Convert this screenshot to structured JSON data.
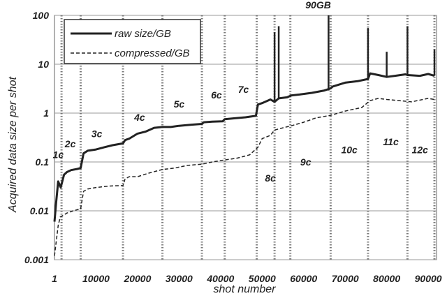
{
  "chart_data": {
    "type": "line",
    "xlabel": "shot  number",
    "ylabel": "Acquired data size per shot",
    "yscale": "log",
    "ylim": [
      0.001,
      100
    ],
    "xlim": [
      1,
      92000
    ],
    "x_tick_labels": [
      "1",
      "10000",
      "20000",
      "30000",
      "40000",
      "50000",
      "60000",
      "70000",
      "80000",
      "90000"
    ],
    "x_tick_values": [
      1,
      10000,
      20000,
      30000,
      40000,
      50000,
      60000,
      70000,
      80000,
      90000
    ],
    "y_tick_labels": [
      "0.001",
      "0.01",
      "0.1",
      "1",
      "10",
      "100"
    ],
    "y_tick_values": [
      0.001,
      0.01,
      0.1,
      1,
      10,
      100
    ],
    "grid": "horizontal",
    "legend_position": "top-left",
    "series": [
      {
        "name": "raw size/GB",
        "style": "solid",
        "color": "#222222",
        "x": [
          1,
          400,
          900,
          1500,
          2300,
          3000,
          4000,
          5500,
          6300,
          7000,
          8000,
          10000,
          12000,
          14000,
          16500,
          17000,
          18000,
          20000,
          22000,
          24000,
          26000,
          28000,
          30000,
          33000,
          35500,
          36000,
          38000,
          40500,
          41000,
          43000,
          46000,
          48500,
          49000,
          50000,
          52000,
          53000,
          54000,
          56000,
          57000,
          59000,
          62000,
          65000,
          66500,
          67000,
          70000,
          73000,
          75500,
          76000,
          78000,
          80000,
          82000,
          84500,
          85000,
          88000,
          90000,
          91500
        ],
        "values": [
          0.006,
          0.015,
          0.04,
          0.03,
          0.055,
          0.062,
          0.068,
          0.072,
          0.075,
          0.15,
          0.17,
          0.18,
          0.2,
          0.22,
          0.24,
          0.28,
          0.3,
          0.38,
          0.42,
          0.5,
          0.52,
          0.52,
          0.55,
          0.58,
          0.6,
          0.65,
          0.67,
          0.68,
          0.75,
          0.78,
          0.82,
          0.88,
          1.5,
          1.6,
          1.9,
          1.7,
          2.0,
          2.1,
          2.3,
          2.4,
          2.6,
          2.9,
          3.2,
          3.5,
          4.2,
          4.5,
          5.0,
          6.5,
          6.0,
          5.5,
          5.8,
          6.2,
          6.0,
          5.8,
          6.3,
          5.8
        ],
        "spikes": [
          {
            "x": 53000,
            "value": 45
          },
          {
            "x": 54000,
            "value": 60
          },
          {
            "x": 66000,
            "value": 100
          },
          {
            "x": 75500,
            "value": 55
          },
          {
            "x": 80000,
            "value": 18
          },
          {
            "x": 85000,
            "value": 60
          },
          {
            "x": 91500,
            "value": 20
          }
        ]
      },
      {
        "name": "compressed/GB",
        "style": "dashed",
        "color": "#222222",
        "x": [
          1,
          900,
          1400,
          2000,
          3000,
          4500,
          6300,
          7000,
          8000,
          10000,
          13000,
          16500,
          17000,
          18000,
          20000,
          23000,
          26000,
          29000,
          32000,
          35500,
          38000,
          41000,
          44000,
          47000,
          49000,
          50000,
          52000,
          53000,
          55000,
          57000,
          60000,
          63000,
          66500,
          70000,
          74000,
          76000,
          78000,
          80000,
          83000,
          86000,
          90000,
          91500
        ],
        "values": [
          0.0012,
          0.005,
          0.0075,
          0.008,
          0.009,
          0.01,
          0.011,
          0.025,
          0.028,
          0.03,
          0.032,
          0.033,
          0.045,
          0.05,
          0.05,
          0.06,
          0.07,
          0.075,
          0.085,
          0.09,
          0.1,
          0.11,
          0.12,
          0.14,
          0.2,
          0.3,
          0.35,
          0.45,
          0.5,
          0.55,
          0.65,
          0.8,
          0.9,
          1.1,
          1.3,
          1.8,
          2.0,
          1.9,
          1.8,
          1.7,
          2.0,
          1.9
        ]
      }
    ],
    "vertical_markers_x": [
      1700,
      6300,
      16500,
      26000,
      35500,
      41000,
      48700,
      53000,
      56800,
      66500,
      75500,
      85000,
      91500
    ],
    "annotations": [
      {
        "text": "1c",
        "x": 900,
        "y": 0.12
      },
      {
        "text": "2c",
        "x": 3800,
        "y": 0.2
      },
      {
        "text": "3c",
        "x": 10200,
        "y": 0.32
      },
      {
        "text": "4c",
        "x": 20500,
        "y": 0.7
      },
      {
        "text": "5c",
        "x": 30000,
        "y": 1.3
      },
      {
        "text": "6c",
        "x": 39000,
        "y": 2.0
      },
      {
        "text": "7c",
        "x": 45500,
        "y": 2.6
      },
      {
        "text": "8c",
        "x": 52000,
        "y": 0.04
      },
      {
        "text": "9c",
        "x": 60500,
        "y": 0.085
      },
      {
        "text": "10c",
        "x": 71000,
        "y": 0.15
      },
      {
        "text": "11c",
        "x": 81000,
        "y": 0.22
      },
      {
        "text": "12c",
        "x": 88000,
        "y": 0.15
      },
      {
        "text": "90GB",
        "x": 63500,
        "y": 140
      }
    ]
  }
}
